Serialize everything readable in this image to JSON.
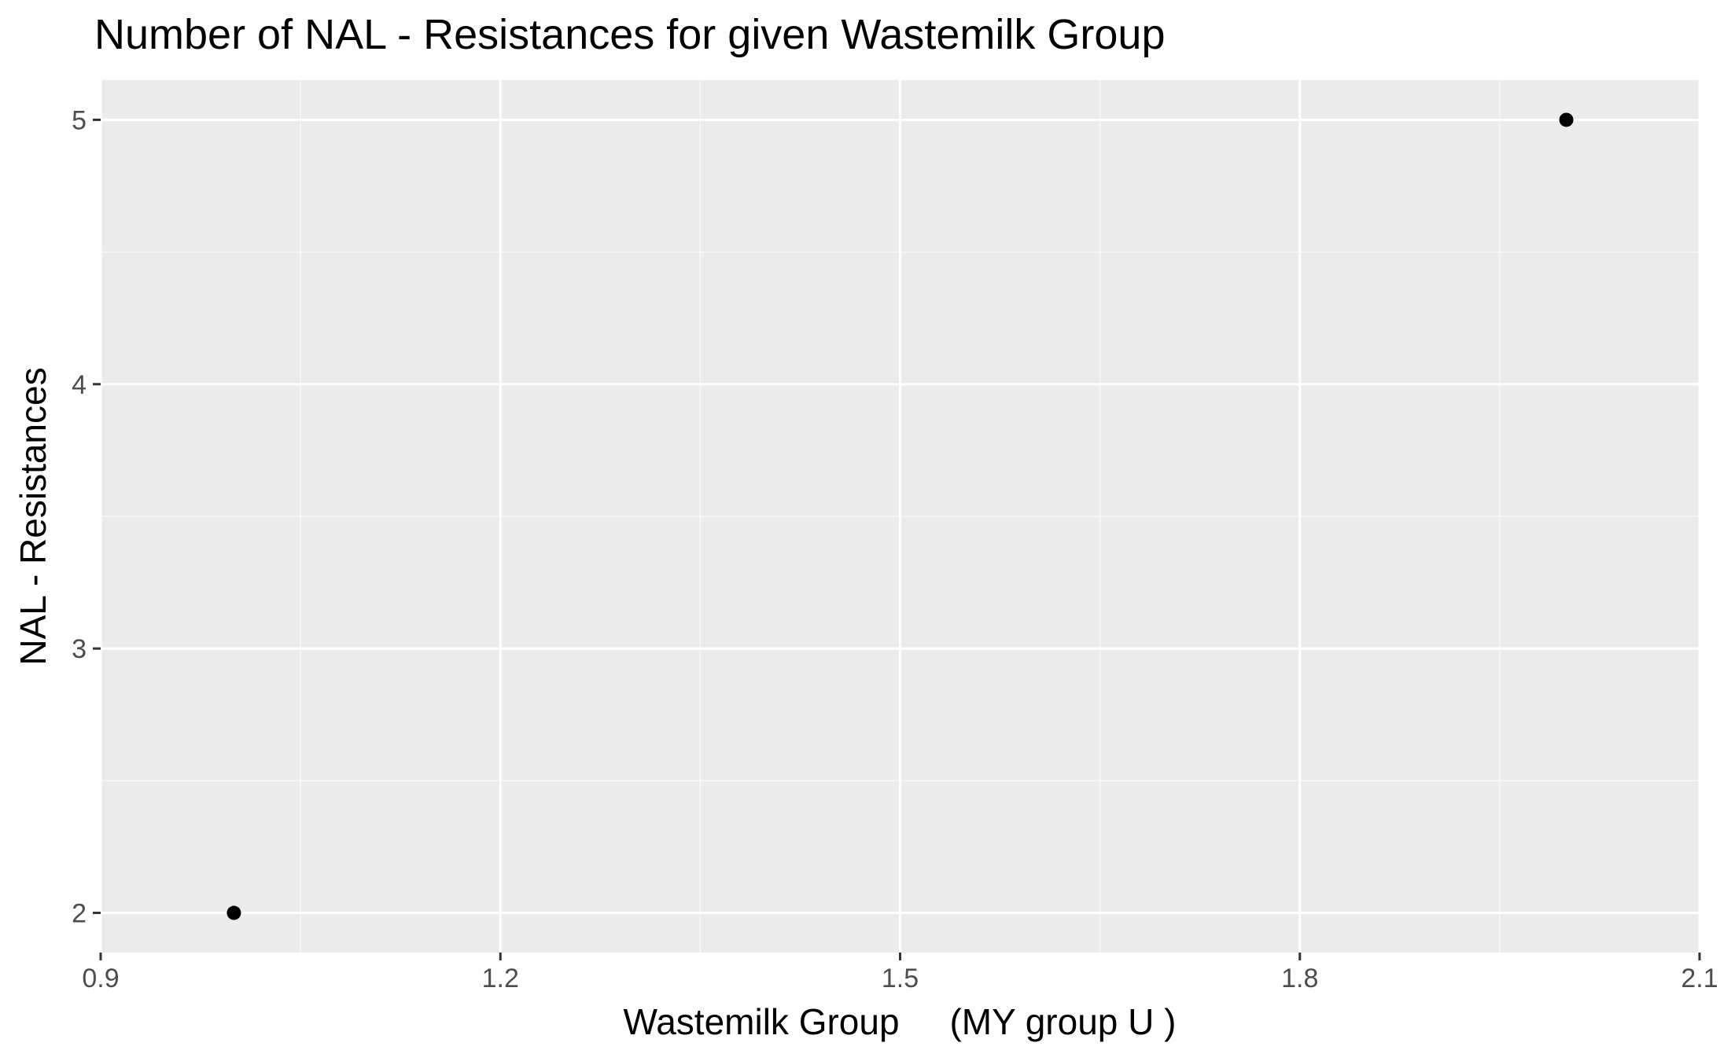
{
  "chart_data": {
    "type": "scatter",
    "title": "Number of NAL - Resistances for given Wastemilk Group",
    "xlabel": "Wastemilk Group     (MY group U )",
    "ylabel": "NAL - Resistances",
    "xlim": [
      0.9,
      2.1
    ],
    "ylim": [
      1.85,
      5.15
    ],
    "x_ticks": [
      0.9,
      1.2,
      1.5,
      1.8,
      2.1
    ],
    "x_tick_labels": [
      "0.9",
      "1.2",
      "1.5",
      "1.8",
      "2.1"
    ],
    "y_ticks": [
      2,
      3,
      4,
      5
    ],
    "y_tick_labels": [
      "2",
      "3",
      "4",
      "5"
    ],
    "x_minor_ticks": [
      1.05,
      1.35,
      1.65,
      1.95
    ],
    "y_minor_ticks": [
      2.5,
      3.5,
      4.5
    ],
    "points": [
      {
        "x": 1.0,
        "y": 2
      },
      {
        "x": 2.0,
        "y": 5
      }
    ],
    "grid": true,
    "legend": "none",
    "colors": {
      "panel_background": "#ebebeb",
      "grid_major": "#ffffff",
      "grid_minor": "#f7f7f7",
      "point": "#000000",
      "tick": "#333333",
      "tick_text": "#4d4d4d",
      "text": "#000000"
    }
  }
}
